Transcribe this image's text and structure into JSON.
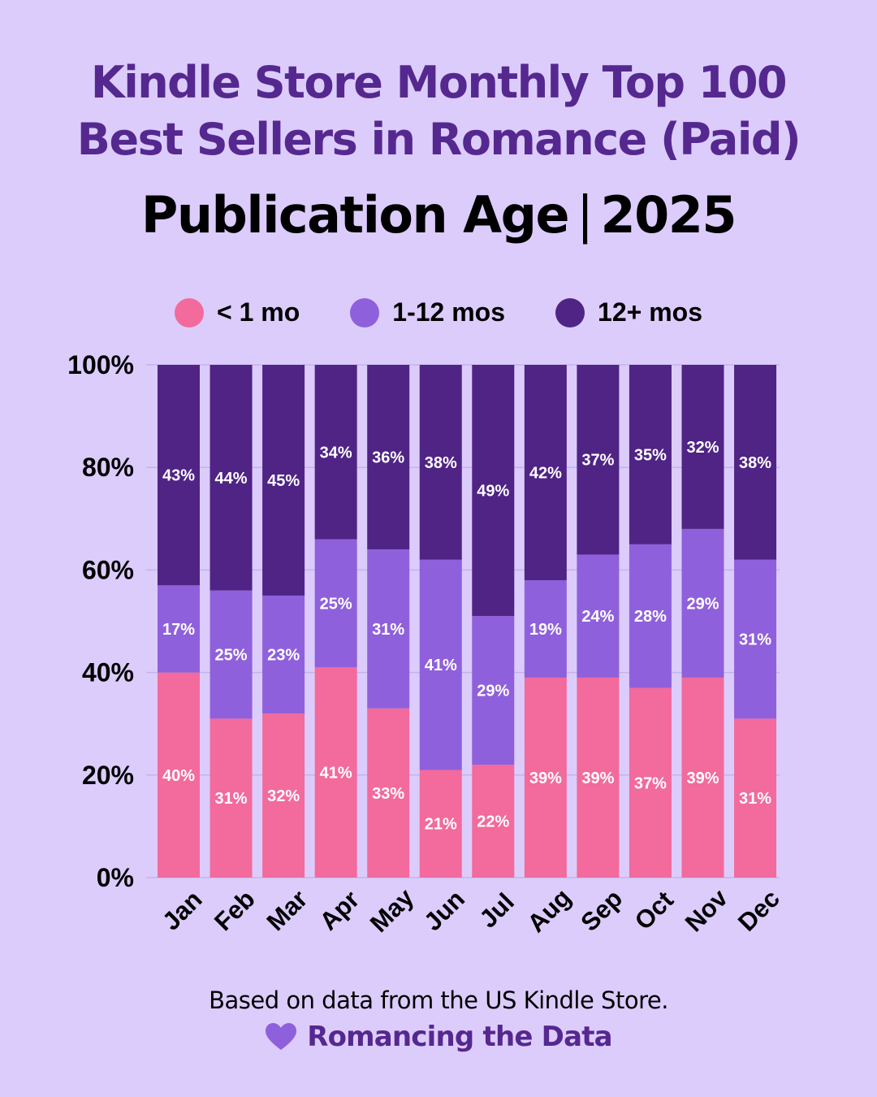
{
  "header": {
    "title_line1": "Kindle Store Monthly Top 100",
    "title_line2": "Best Sellers in Romance (Paid)",
    "subtitle_left": "Publication Age",
    "subtitle_sep": "|",
    "subtitle_right": "2025"
  },
  "colors": {
    "background": "#dcccfc",
    "title": "#55288f",
    "lt1": "#f36a9c",
    "m1to12": "#8f60db",
    "m12plus": "#4f2485"
  },
  "chart_data": {
    "type": "bar",
    "stacked": true,
    "categories": [
      "Jan",
      "Feb",
      "Mar",
      "Apr",
      "May",
      "Jun",
      "Jul",
      "Aug",
      "Sep",
      "Oct",
      "Nov",
      "Dec"
    ],
    "series": [
      {
        "name": "< 1 mo",
        "color": "#f36a9c",
        "values": [
          40,
          31,
          32,
          41,
          33,
          21,
          22,
          39,
          39,
          37,
          39,
          31
        ]
      },
      {
        "name": "1-12 mos",
        "color": "#8f60db",
        "values": [
          17,
          25,
          23,
          25,
          31,
          41,
          29,
          19,
          24,
          28,
          29,
          31
        ]
      },
      {
        "name": "12+ mos",
        "color": "#4f2485",
        "values": [
          43,
          44,
          45,
          34,
          36,
          38,
          49,
          42,
          37,
          35,
          32,
          38
        ]
      }
    ],
    "data_labels": {
      "< 1 mo": [
        "40%",
        "31%",
        "32%",
        "41%",
        "33%",
        "21%",
        "22%",
        "39%",
        "39%",
        "37%",
        "39%",
        "31%"
      ],
      "1-12 mos": [
        "17%",
        "25%",
        "23%",
        "25%",
        "31%",
        "41%",
        "29%",
        "19%",
        "24%",
        "28%",
        "29%",
        "31%"
      ],
      "12+ mos": [
        "43%",
        "44%",
        "45%",
        "34%",
        "36%",
        "38%",
        "49%",
        "42%",
        "37%",
        "35%",
        "32%",
        "38%"
      ]
    },
    "y_ticks": [
      "0%",
      "20%",
      "40%",
      "60%",
      "80%",
      "100%"
    ],
    "ylim": [
      0,
      100
    ],
    "grid": true,
    "legend_position": "top"
  },
  "footer": {
    "note": "Based on data from the US Kindle Store.",
    "brand": "Romancing the Data",
    "brand_icon": "heart-icon"
  }
}
